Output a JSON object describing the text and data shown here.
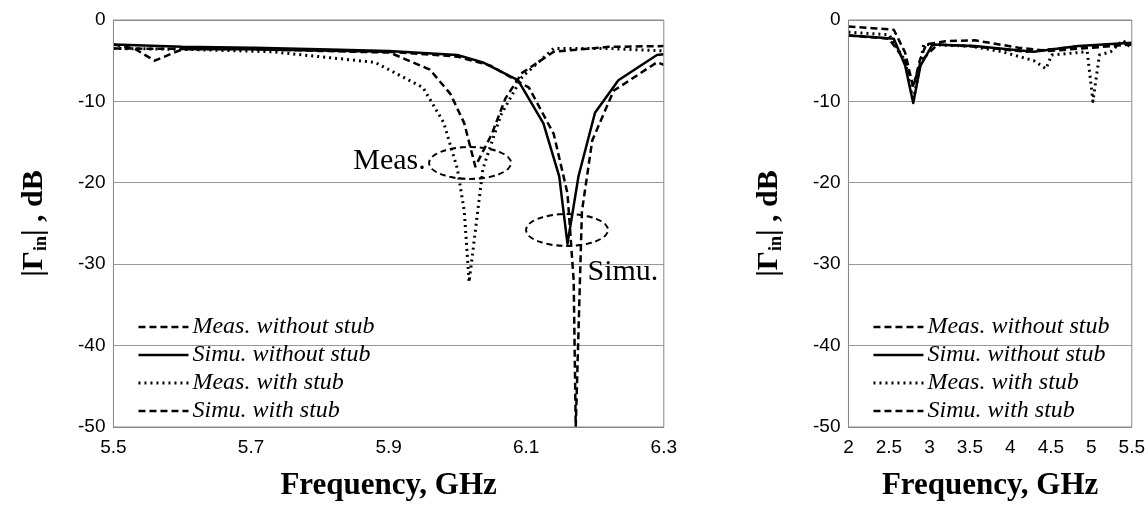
{
  "chart_data": [
    {
      "type": "line",
      "xlabel": "Frequency, GHz",
      "ylabel": "|Γ$_{in}$| , dB",
      "xlim": [
        5.5,
        6.3
      ],
      "xticks": [
        5.5,
        5.7,
        5.9,
        6.1,
        6.3
      ],
      "ylim": [
        -50,
        0
      ],
      "yticks": [
        -50,
        -40,
        -30,
        -20,
        -10,
        0
      ],
      "grid": "y",
      "legend": "bottom left",
      "marker": "none",
      "annotations": [
        {
          "text": "Meas.",
          "x": 6.018,
          "y": -17.6
        },
        {
          "text": "Simu.",
          "x": 6.16,
          "y": -25.8
        }
      ],
      "series": [
        {
          "name": "Meas. without stub",
          "color": "#000000",
          "line_style": "dashed",
          "x": [
            5.5,
            5.53,
            5.56,
            5.6,
            5.7,
            5.8,
            5.9,
            5.91,
            5.96,
            5.99,
            6.01,
            6.026,
            6.05,
            6.07,
            6.094,
            6.14,
            6.22,
            6.3
          ],
          "values": [
            -3,
            -3.5,
            -5,
            -3.6,
            -3.6,
            -3.8,
            -4,
            -4.3,
            -6.1,
            -9.1,
            -12.7,
            -18,
            -14,
            -9.6,
            -6.5,
            -3.9,
            -3.3,
            -3.2
          ]
        },
        {
          "name": "Simu. without stub",
          "color": "#000000",
          "line_style": "solid",
          "x": [
            5.5,
            5.6,
            5.7,
            5.8,
            5.9,
            6.0,
            6.037,
            6.088,
            6.125,
            6.148,
            6.16,
            6.176,
            6.2,
            6.234,
            6.29,
            6.3
          ],
          "values": [
            -3,
            -3.3,
            -3.4,
            -3.6,
            -3.8,
            -4.3,
            -5.2,
            -7.4,
            -12.7,
            -19.2,
            -27.5,
            -19.2,
            -11.4,
            -7.4,
            -4.3,
            -4.2
          ]
        },
        {
          "name": "Meas. with stub",
          "color": "#000000",
          "line_style": "dotted",
          "x": [
            5.5,
            5.6,
            5.73,
            5.88,
            5.95,
            5.98,
            6.0,
            6.01,
            6.017,
            6.037,
            6.063,
            6.094,
            6.14,
            6.22,
            6.3
          ],
          "values": [
            -3.5,
            -3.6,
            -3.9,
            -5.2,
            -8.3,
            -12.6,
            -18.3,
            -23.5,
            -32.2,
            -18.3,
            -11.7,
            -7,
            -3.5,
            -3.5,
            -3.8
          ]
        },
        {
          "name": "Simu. with stub",
          "color": "#000000",
          "line_style": "dashed",
          "x": [
            5.5,
            5.7,
            5.9,
            6.0,
            6.048,
            6.104,
            6.14,
            6.16,
            6.169,
            6.172,
            6.181,
            6.196,
            6.227,
            6.29,
            6.3
          ],
          "values": [
            -3.5,
            -3.6,
            -3.9,
            -4.5,
            -5.6,
            -8.3,
            -14,
            -21.3,
            -32,
            -50,
            -23.5,
            -14.8,
            -8.7,
            -5.2,
            -5.5
          ]
        }
      ]
    },
    {
      "type": "line",
      "xlabel": "Frequency, GHz",
      "ylabel": "|Γ$_{in}$| , dB",
      "xlim": [
        2,
        5.5
      ],
      "xticks": [
        2,
        2.5,
        3,
        3.5,
        4,
        4.5,
        5,
        5.5
      ],
      "ylim": [
        -50,
        0
      ],
      "yticks": [
        -50,
        -40,
        -30,
        -20,
        -10,
        0
      ],
      "grid": "y",
      "legend": "bottom left",
      "marker": "none",
      "series": [
        {
          "name": "Meas. without stub",
          "color": "#000000",
          "line_style": "dashed",
          "x": [
            2,
            2.3,
            2.56,
            2.7,
            2.8,
            2.88,
            2.96,
            3.2,
            3.56,
            4.1,
            4.47,
            5.02,
            5.5
          ],
          "values": [
            -0.8,
            -1,
            -1.2,
            -4,
            -8.3,
            -5,
            -3,
            -2.6,
            -2.5,
            -3.4,
            -3.8,
            -3.4,
            -3
          ]
        },
        {
          "name": "Simu. without stub",
          "color": "#000000",
          "line_style": "solid",
          "x": [
            2,
            2.3,
            2.56,
            2.7,
            2.8,
            2.89,
            3.04,
            3.56,
            4.29,
            4.84,
            5.5
          ],
          "values": [
            -1.9,
            -2.1,
            -2.3,
            -5.6,
            -10.2,
            -5.6,
            -3,
            -3.2,
            -3.9,
            -3.2,
            -2.8
          ]
        },
        {
          "name": "Meas. with stub",
          "color": "#000000",
          "line_style": "dotted",
          "x": [
            2,
            2.5,
            2.7,
            2.8,
            2.93,
            3.5,
            3.9,
            4.29,
            4.44,
            4.51,
            4.95,
            5.02,
            5.1,
            5.24,
            5.39,
            5.5
          ],
          "values": [
            -1.5,
            -1.8,
            -5,
            -10,
            -3,
            -3.2,
            -3.9,
            -5,
            -6,
            -4.3,
            -3.9,
            -10,
            -4.3,
            -3.9,
            -2.5,
            -3.5
          ]
        },
        {
          "name": "Simu. with stub",
          "color": "#000000",
          "line_style": "dashed",
          "x": [
            2,
            2.5,
            2.7,
            2.8,
            2.9,
            3.1,
            3.6,
            4.2,
            4.8,
            5.5
          ],
          "values": [
            -1.9,
            -2.3,
            -5,
            -8,
            -5,
            -3,
            -3.3,
            -3.9,
            -3.3,
            -2.9
          ]
        }
      ]
    }
  ]
}
